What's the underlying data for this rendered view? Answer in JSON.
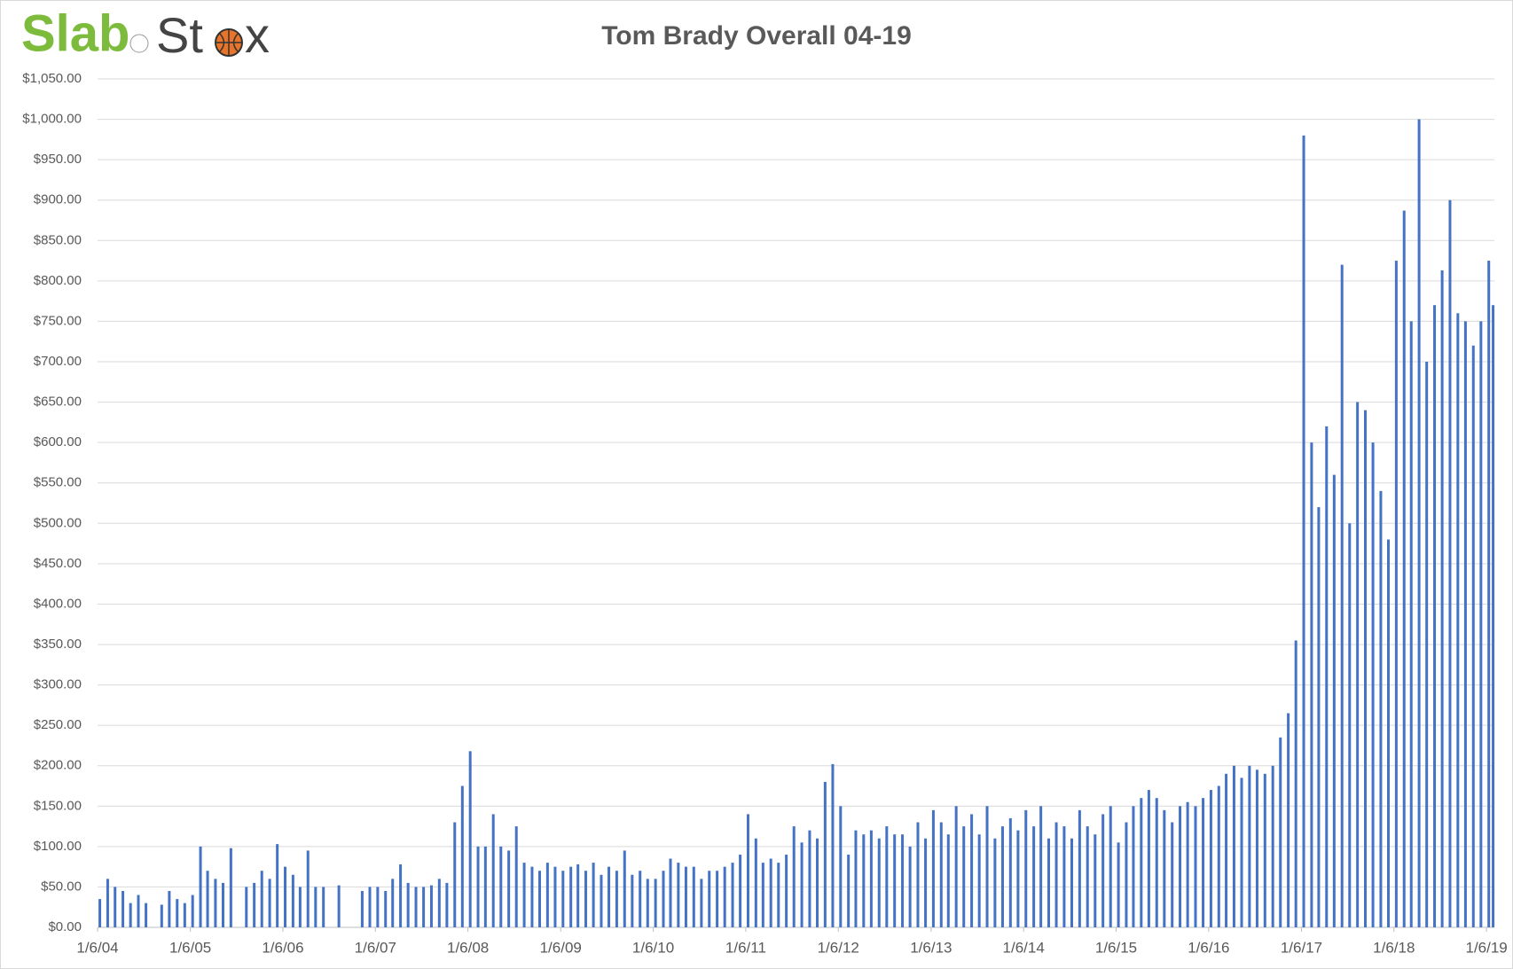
{
  "logo": {
    "first": "Slab",
    "second": "St",
    "third": "x"
  },
  "chart_data": {
    "type": "bar",
    "title": "Tom Brady Overall 04-19",
    "color": "#4472c4",
    "grid": true,
    "x": [
      "2004-01-15",
      "2004-02-15",
      "2004-03-15",
      "2004-04-15",
      "2004-05-15",
      "2004-06-15",
      "2004-07-15",
      "2004-09-15",
      "2004-10-15",
      "2004-11-15",
      "2004-12-15",
      "2005-01-15",
      "2005-02-15",
      "2005-03-15",
      "2005-04-15",
      "2005-05-15",
      "2005-06-15",
      "2005-08-15",
      "2005-09-15",
      "2005-10-15",
      "2005-11-15",
      "2005-12-15",
      "2006-01-15",
      "2006-02-15",
      "2006-03-15",
      "2006-04-15",
      "2006-05-15",
      "2006-06-15",
      "2006-08-15",
      "2006-11-15",
      "2006-12-15",
      "2007-01-15",
      "2007-02-15",
      "2007-03-15",
      "2007-04-15",
      "2007-05-15",
      "2007-06-15",
      "2007-07-15",
      "2007-08-15",
      "2007-09-15",
      "2007-10-15",
      "2007-11-15",
      "2007-12-15",
      "2008-01-15",
      "2008-02-15",
      "2008-03-15",
      "2008-04-15",
      "2008-05-15",
      "2008-06-15",
      "2008-07-15",
      "2008-08-15",
      "2008-09-15",
      "2008-10-15",
      "2008-11-15",
      "2008-12-15",
      "2009-01-15",
      "2009-02-15",
      "2009-03-15",
      "2009-04-15",
      "2009-05-15",
      "2009-06-15",
      "2009-07-15",
      "2009-08-15",
      "2009-09-15",
      "2009-10-15",
      "2009-11-15",
      "2009-12-15",
      "2010-01-15",
      "2010-02-15",
      "2010-03-15",
      "2010-04-15",
      "2010-05-15",
      "2010-06-15",
      "2010-07-15",
      "2010-08-15",
      "2010-09-15",
      "2010-10-15",
      "2010-11-15",
      "2010-12-15",
      "2011-01-15",
      "2011-02-15",
      "2011-03-15",
      "2011-04-15",
      "2011-05-15",
      "2011-06-15",
      "2011-07-15",
      "2011-08-15",
      "2011-09-15",
      "2011-10-15",
      "2011-11-15",
      "2011-12-15",
      "2012-01-15",
      "2012-02-15",
      "2012-03-15",
      "2012-04-15",
      "2012-05-15",
      "2012-06-15",
      "2012-07-15",
      "2012-08-15",
      "2012-09-15",
      "2012-10-15",
      "2012-11-15",
      "2012-12-15",
      "2013-01-15",
      "2013-02-15",
      "2013-03-15",
      "2013-04-15",
      "2013-05-15",
      "2013-06-15",
      "2013-07-15",
      "2013-08-15",
      "2013-09-15",
      "2013-10-15",
      "2013-11-15",
      "2013-12-15",
      "2014-01-15",
      "2014-02-15",
      "2014-03-15",
      "2014-04-15",
      "2014-05-15",
      "2014-06-15",
      "2014-07-15",
      "2014-08-15",
      "2014-09-15",
      "2014-10-15",
      "2014-11-15",
      "2014-12-15",
      "2015-01-15",
      "2015-02-15",
      "2015-03-15",
      "2015-04-15",
      "2015-05-15",
      "2015-06-15",
      "2015-07-15",
      "2015-08-15",
      "2015-09-15",
      "2015-10-15",
      "2015-11-15",
      "2015-12-15",
      "2016-01-15",
      "2016-02-15",
      "2016-03-15",
      "2016-04-15",
      "2016-05-15",
      "2016-06-15",
      "2016-07-15",
      "2016-08-15",
      "2016-09-15",
      "2016-10-15",
      "2016-11-15",
      "2016-12-15",
      "2017-01-15",
      "2017-02-15",
      "2017-03-15",
      "2017-04-15",
      "2017-05-15",
      "2017-06-15",
      "2017-07-15",
      "2017-08-15",
      "2017-09-15",
      "2017-10-15",
      "2017-11-15",
      "2017-12-15",
      "2018-01-15",
      "2018-02-15",
      "2018-03-15",
      "2018-04-15",
      "2018-05-15",
      "2018-06-15",
      "2018-07-15",
      "2018-08-15",
      "2018-09-15",
      "2018-10-15",
      "2018-11-15",
      "2018-12-15",
      "2019-01-15",
      "2019-02-01"
    ],
    "values": [
      35,
      60,
      50,
      45,
      30,
      40,
      30,
      28,
      45,
      35,
      30,
      40,
      100,
      70,
      60,
      55,
      98,
      50,
      55,
      70,
      60,
      103,
      75,
      65,
      50,
      95,
      50,
      50,
      52,
      45,
      50,
      50,
      45,
      60,
      78,
      55,
      50,
      50,
      52,
      60,
      55,
      130,
      175,
      218,
      100,
      100,
      140,
      100,
      95,
      125,
      80,
      75,
      70,
      80,
      75,
      70,
      75,
      78,
      70,
      80,
      65,
      75,
      70,
      95,
      65,
      70,
      60,
      60,
      70,
      85,
      80,
      75,
      75,
      60,
      70,
      70,
      75,
      80,
      90,
      140,
      110,
      80,
      85,
      80,
      90,
      125,
      105,
      120,
      110,
      180,
      202,
      150,
      90,
      120,
      115,
      120,
      110,
      125,
      115,
      115,
      100,
      130,
      110,
      145,
      130,
      115,
      150,
      125,
      140,
      115,
      150,
      110,
      125,
      135,
      120,
      145,
      125,
      150,
      110,
      130,
      125,
      110,
      145,
      125,
      115,
      140,
      150,
      105,
      130,
      150,
      160,
      170,
      160,
      145,
      130,
      150,
      155,
      150,
      160,
      170,
      175,
      190,
      200,
      185,
      200,
      195,
      190,
      200,
      235,
      265,
      355,
      980,
      600,
      520,
      620,
      560,
      820,
      500,
      650,
      640,
      600,
      540,
      480,
      825,
      887,
      750,
      1000,
      700,
      770,
      813,
      900,
      760,
      750,
      720,
      750,
      825,
      770
    ],
    "xlim": [
      "2004-01-06",
      "2019-02-06"
    ],
    "xticks": [
      {
        "value": "2004-01-06",
        "label": "1/6/04"
      },
      {
        "value": "2005-01-06",
        "label": "1/6/05"
      },
      {
        "value": "2006-01-06",
        "label": "1/6/06"
      },
      {
        "value": "2007-01-06",
        "label": "1/6/07"
      },
      {
        "value": "2008-01-06",
        "label": "1/6/08"
      },
      {
        "value": "2009-01-06",
        "label": "1/6/09"
      },
      {
        "value": "2010-01-06",
        "label": "1/6/10"
      },
      {
        "value": "2011-01-06",
        "label": "1/6/11"
      },
      {
        "value": "2012-01-06",
        "label": "1/6/12"
      },
      {
        "value": "2013-01-06",
        "label": "1/6/13"
      },
      {
        "value": "2014-01-06",
        "label": "1/6/14"
      },
      {
        "value": "2015-01-06",
        "label": "1/6/15"
      },
      {
        "value": "2016-01-06",
        "label": "1/6/16"
      },
      {
        "value": "2017-01-06",
        "label": "1/6/17"
      },
      {
        "value": "2018-01-06",
        "label": "1/6/18"
      },
      {
        "value": "2019-01-06",
        "label": "1/6/19"
      }
    ],
    "ylim": [
      0,
      1050
    ],
    "yticks": [
      {
        "value": 0,
        "label": "$0.00"
      },
      {
        "value": 50,
        "label": "$50.00"
      },
      {
        "value": 100,
        "label": "$100.00"
      },
      {
        "value": 150,
        "label": "$150.00"
      },
      {
        "value": 200,
        "label": "$200.00"
      },
      {
        "value": 250,
        "label": "$250.00"
      },
      {
        "value": 300,
        "label": "$300.00"
      },
      {
        "value": 350,
        "label": "$350.00"
      },
      {
        "value": 400,
        "label": "$400.00"
      },
      {
        "value": 450,
        "label": "$450.00"
      },
      {
        "value": 500,
        "label": "$500.00"
      },
      {
        "value": 550,
        "label": "$550.00"
      },
      {
        "value": 600,
        "label": "$600.00"
      },
      {
        "value": 650,
        "label": "$650.00"
      },
      {
        "value": 700,
        "label": "$700.00"
      },
      {
        "value": 750,
        "label": "$750.00"
      },
      {
        "value": 800,
        "label": "$800.00"
      },
      {
        "value": 850,
        "label": "$850.00"
      },
      {
        "value": 900,
        "label": "$900.00"
      },
      {
        "value": 950,
        "label": "$950.00"
      },
      {
        "value": 1000,
        "label": "$1,000.00"
      },
      {
        "value": 1050,
        "label": "$1,050.00"
      }
    ]
  }
}
